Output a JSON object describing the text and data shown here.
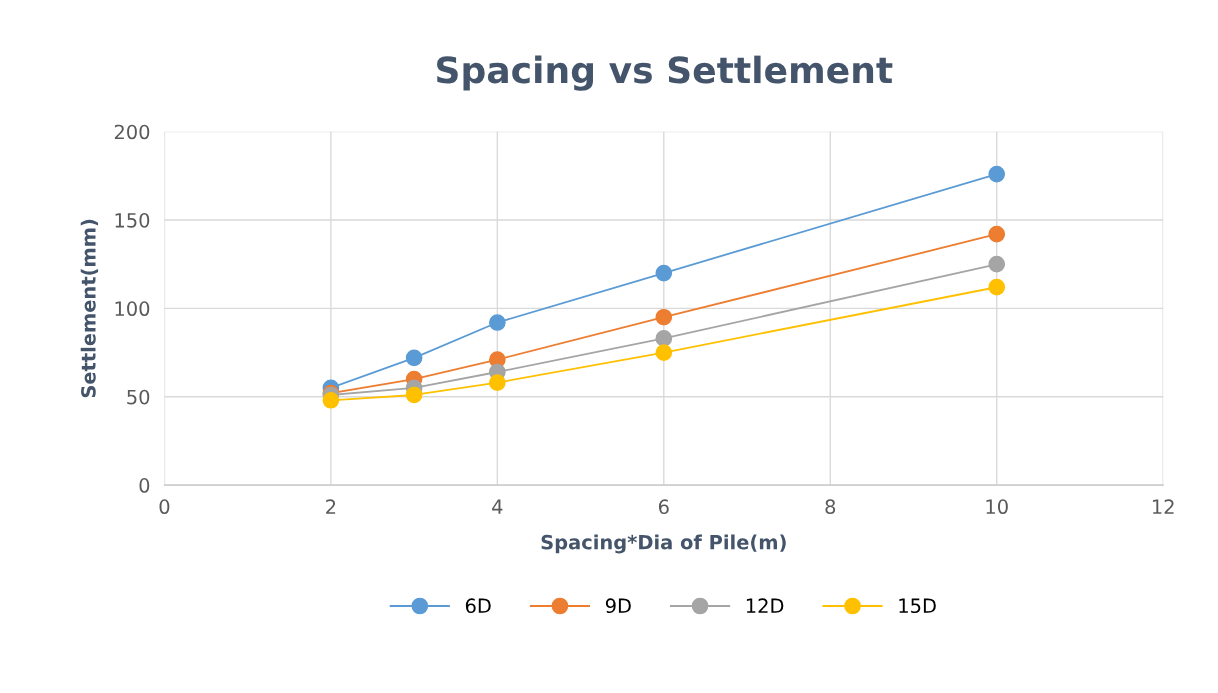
{
  "chart_data": {
    "type": "line",
    "title": "Spacing vs Settlement",
    "xlabel": "Spacing*Dia of Pile(m)",
    "ylabel": "Settlement(mm)",
    "x": [
      2,
      3,
      4,
      6,
      10
    ],
    "series": [
      {
        "name": "6D",
        "color": "#5b9bd5",
        "values": [
          55,
          72,
          92,
          120,
          176
        ]
      },
      {
        "name": "9D",
        "color": "#ed7d31",
        "values": [
          52,
          60,
          71,
          95,
          142
        ]
      },
      {
        "name": "12D",
        "color": "#a5a5a5",
        "values": [
          51,
          55,
          64,
          83,
          125
        ]
      },
      {
        "name": "15D",
        "color": "#ffc000",
        "values": [
          48,
          51,
          58,
          75,
          112
        ]
      }
    ],
    "xlim": [
      0,
      12
    ],
    "xticks": [
      0,
      2,
      4,
      6,
      8,
      10,
      12
    ],
    "ylim": [
      0,
      200
    ],
    "yticks": [
      0,
      50,
      100,
      150,
      200
    ],
    "grid": true,
    "legend": "bottom",
    "marker": "circle",
    "line_style": "solid"
  }
}
